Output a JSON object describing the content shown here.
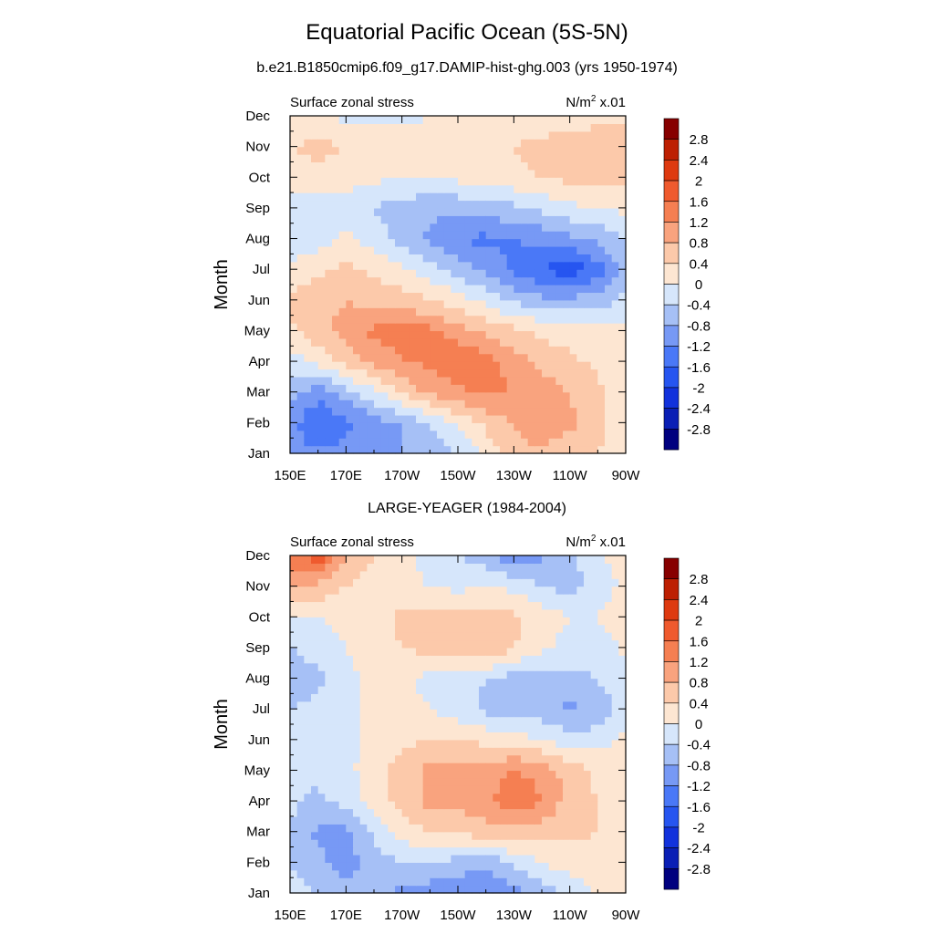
{
  "figure": {
    "title": "Equatorial Pacific Ocean (5S-5N)"
  },
  "colorbar": {
    "levels": [
      -2.8,
      -2.4,
      -2,
      -1.6,
      -1.2,
      -0.8,
      -0.4,
      0,
      0.4,
      0.8,
      1.2,
      1.6,
      2,
      2.4,
      2.8
    ],
    "colors": [
      "#00007f",
      "#0a1fb5",
      "#1232dc",
      "#2655f0",
      "#4a78f7",
      "#7799f5",
      "#a6c0f6",
      "#d6e6fb",
      "#fde6d2",
      "#fcc9aa",
      "#f9a37e",
      "#f57f52",
      "#ef5a2e",
      "#de3a10",
      "#bd2002",
      "#870000"
    ]
  },
  "chart_data": [
    {
      "type": "heatmap",
      "title": "b.e21.B1850cmip6.f09_g17.DAMIP-hist-ghg.003 (yrs 1950-1974)",
      "left_label": "Surface zonal stress",
      "units_base": "N/m",
      "units_exp": "2",
      "units_scale": "x.01",
      "xlabel": "",
      "ylabel": "Month",
      "x_ticks": [
        "150E",
        "170E",
        "170W",
        "150W",
        "130W",
        "110W",
        "90W"
      ],
      "y_ticks": [
        "Jan",
        "Feb",
        "Mar",
        "Apr",
        "May",
        "Jun",
        "Jul",
        "Aug",
        "Sep",
        "Oct",
        "Nov",
        "Dec"
      ],
      "x_values_deg_east": [
        150,
        160,
        170,
        180,
        190,
        200,
        210,
        220,
        230,
        240,
        250,
        260,
        270
      ],
      "y_values": [
        "Jan",
        "Feb",
        "Mar",
        "Apr",
        "May",
        "Jun",
        "Jul",
        "Aug",
        "Sep",
        "Oct",
        "Nov",
        "Dec"
      ],
      "values": [
        [
          -1.0,
          -1.1,
          -1.1,
          -1.0,
          -0.8,
          -0.6,
          -0.4,
          0.1,
          0.7,
          0.8,
          0.6,
          0.4,
          0.2
        ],
        [
          -1.0,
          -1.7,
          -1.3,
          -1.0,
          -0.8,
          -0.4,
          0.1,
          0.5,
          0.8,
          0.9,
          0.9,
          0.5,
          0.1
        ],
        [
          -0.6,
          -1.0,
          -0.6,
          -0.1,
          0.5,
          0.9,
          1.1,
          1.3,
          1.2,
          1.0,
          0.8,
          0.5,
          0.1
        ],
        [
          -0.2,
          0.1,
          0.6,
          0.9,
          1.2,
          1.3,
          1.5,
          1.4,
          1.0,
          0.7,
          0.5,
          0.3,
          0.1
        ],
        [
          0.3,
          0.7,
          0.9,
          1.3,
          1.4,
          1.3,
          1.0,
          0.7,
          0.5,
          0.3,
          0.2,
          0.2,
          0.1
        ],
        [
          0.5,
          0.7,
          0.8,
          0.7,
          0.6,
          0.4,
          0.2,
          -0.1,
          -0.5,
          -0.7,
          -0.7,
          -0.6,
          -0.3
        ],
        [
          0.1,
          0.3,
          0.5,
          0.3,
          0.1,
          -0.2,
          -0.6,
          -0.9,
          -1.3,
          -1.6,
          -1.9,
          -1.4,
          -0.7
        ],
        [
          -0.3,
          -0.2,
          0.1,
          -0.2,
          -0.6,
          -0.9,
          -1.2,
          -1.3,
          -1.2,
          -1.1,
          -0.9,
          -0.7,
          -0.4
        ],
        [
          -0.3,
          -0.3,
          -0.3,
          -0.4,
          -0.6,
          -0.7,
          -0.7,
          -0.6,
          -0.5,
          -0.3,
          -0.1,
          0.0,
          0.1
        ],
        [
          0.2,
          0.3,
          0.2,
          0.1,
          0.0,
          0.0,
          0.1,
          0.2,
          0.3,
          0.4,
          0.5,
          0.5,
          0.5
        ],
        [
          0.4,
          0.5,
          0.4,
          0.3,
          0.2,
          0.2,
          0.3,
          0.3,
          0.4,
          0.5,
          0.5,
          0.6,
          0.6
        ],
        [
          0.1,
          0.0,
          -0.1,
          -0.1,
          -0.1,
          0.0,
          0.1,
          0.1,
          0.2,
          0.2,
          0.3,
          0.3,
          0.3
        ]
      ],
      "grid": false,
      "colorbar_position": "right"
    },
    {
      "type": "heatmap",
      "title": "LARGE-YEAGER (1984-2004)",
      "left_label": "Surface zonal stress",
      "units_base": "N/m",
      "units_exp": "2",
      "units_scale": "x.01",
      "xlabel": "",
      "ylabel": "Month",
      "x_ticks": [
        "150E",
        "170E",
        "170W",
        "150W",
        "130W",
        "110W",
        "90W"
      ],
      "y_ticks": [
        "Jan",
        "Feb",
        "Mar",
        "Apr",
        "May",
        "Jun",
        "Jul",
        "Aug",
        "Sep",
        "Oct",
        "Nov",
        "Dec"
      ],
      "x_values_deg_east": [
        150,
        160,
        170,
        180,
        190,
        200,
        210,
        220,
        230,
        240,
        250,
        260,
        270
      ],
      "y_values": [
        "Jan",
        "Feb",
        "Mar",
        "Apr",
        "May",
        "Jun",
        "Jul",
        "Aug",
        "Sep",
        "Oct",
        "Nov",
        "Dec"
      ],
      "values": [
        [
          -0.1,
          -0.5,
          -0.7,
          -0.7,
          -0.9,
          -1.1,
          -1.0,
          -1.2,
          -1.0,
          -0.6,
          -0.3,
          0.1,
          0.2
        ],
        [
          -0.5,
          -0.7,
          -1.0,
          -0.6,
          -0.4,
          -0.3,
          -0.6,
          -0.7,
          -0.3,
          0.0,
          0.2,
          0.3,
          0.3
        ],
        [
          -0.4,
          -0.9,
          -0.9,
          -0.3,
          0.2,
          0.4,
          0.5,
          0.6,
          0.7,
          0.6,
          0.5,
          0.4,
          0.3
        ],
        [
          -0.3,
          -0.5,
          -0.3,
          0.2,
          0.6,
          0.9,
          0.9,
          1.1,
          1.5,
          1.2,
          0.6,
          0.4,
          0.3
        ],
        [
          -0.2,
          -0.3,
          -0.1,
          0.2,
          0.6,
          0.9,
          0.9,
          1.0,
          1.2,
          1.1,
          0.6,
          0.3,
          0.2
        ],
        [
          -0.2,
          -0.2,
          -0.1,
          0.1,
          0.3,
          0.4,
          0.4,
          0.3,
          0.2,
          0.0,
          -0.2,
          -0.2,
          0.1
        ],
        [
          -0.4,
          -0.3,
          -0.1,
          0.1,
          0.1,
          0.0,
          -0.2,
          -0.5,
          -0.7,
          -0.6,
          -0.9,
          -0.7,
          -0.2
        ],
        [
          -0.7,
          -0.5,
          -0.1,
          0.1,
          0.1,
          -0.1,
          -0.2,
          -0.4,
          -0.6,
          -0.6,
          -0.5,
          -0.4,
          -0.1
        ],
        [
          -0.4,
          -0.2,
          0.0,
          0.2,
          0.4,
          0.5,
          0.6,
          0.8,
          0.4,
          0.1,
          -0.2,
          -0.3,
          0.1
        ],
        [
          -0.1,
          0.0,
          0.1,
          0.2,
          0.5,
          0.6,
          0.5,
          0.6,
          0.5,
          0.2,
          0.0,
          0.0,
          0.3
        ],
        [
          0.9,
          0.7,
          0.4,
          0.2,
          0.1,
          0.0,
          -0.1,
          0.0,
          -0.1,
          -0.4,
          -0.6,
          -0.2,
          0.1
        ],
        [
          1.4,
          1.9,
          0.8,
          0.4,
          0.2,
          -0.2,
          -0.4,
          -0.6,
          -1.1,
          -0.9,
          -0.5,
          -0.1,
          0.2
        ]
      ],
      "grid": false,
      "colorbar_position": "right"
    }
  ]
}
